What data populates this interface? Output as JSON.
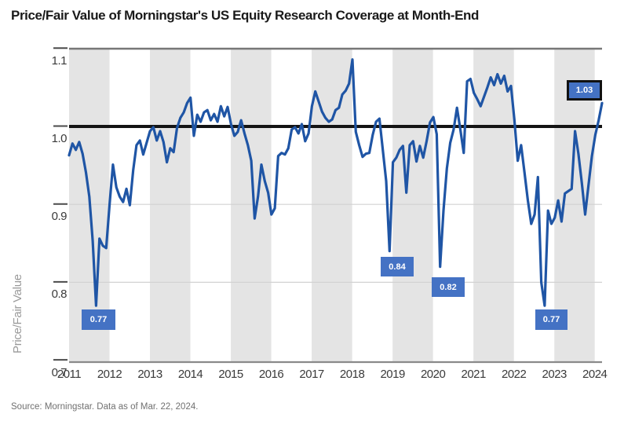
{
  "header": {
    "title": "Price/Fair Value of Morningstar's US Equity Research Coverage at Month-End"
  },
  "footer": {
    "source": "Source: Morningstar. Data as of Mar. 22, 2024."
  },
  "colors": {
    "line": "#1F55A5",
    "annotation_fill": "#4472C4",
    "annotation_border": "#111111",
    "band": "#e4e4e4",
    "grid": "#d2d2d2",
    "axis": "#8a8a8a",
    "tick": "#4a4a4a",
    "reference_line": "#141414",
    "title_text": "#1a1a1a",
    "axis_text": "#3a3a3a",
    "muted_text": "#9a9a9a",
    "source_text": "#707070"
  },
  "chart_data": {
    "type": "line",
    "title": "Price/Fair Value of Morningstar's US Equity Research Coverage at Month-End",
    "xlabel": "",
    "ylabel": "Price/Fair Value",
    "x_unit": "month",
    "start": "2011-01",
    "end": "2024-03",
    "x_tick_years": [
      2011,
      2012,
      2013,
      2014,
      2015,
      2016,
      2017,
      2018,
      2019,
      2020,
      2021,
      2022,
      2023,
      2024
    ],
    "y_ticks": [
      1.1,
      1.0,
      0.9,
      0.8,
      0.7
    ],
    "y_tick_labels": [
      "1.1",
      "1.0",
      "0.9",
      "0.8",
      "0.7"
    ],
    "ylim": [
      0.696,
      1.1
    ],
    "grid_values": [
      0.9,
      0.8
    ],
    "reference_line": 1.0,
    "shaded_years": [
      2011,
      2013,
      2015,
      2017,
      2019,
      2021,
      2023
    ],
    "legend": "none",
    "series": [
      {
        "name": "Price/Fair Value",
        "values": [
          0.963,
          0.978,
          0.97,
          0.98,
          0.965,
          0.941,
          0.91,
          0.853,
          0.77,
          0.856,
          0.847,
          0.844,
          0.9,
          0.951,
          0.922,
          0.91,
          0.903,
          0.92,
          0.899,
          0.944,
          0.976,
          0.982,
          0.964,
          0.979,
          0.994,
          0.999,
          0.982,
          0.994,
          0.98,
          0.954,
          0.972,
          0.967,
          0.998,
          1.011,
          1.018,
          1.03,
          1.037,
          0.988,
          1.015,
          1.006,
          1.018,
          1.021,
          1.008,
          1.016,
          1.006,
          1.026,
          1.013,
          1.025,
          1.003,
          0.988,
          0.993,
          1.008,
          0.991,
          0.976,
          0.956,
          0.882,
          0.91,
          0.951,
          0.93,
          0.915,
          0.887,
          0.895,
          0.962,
          0.966,
          0.964,
          0.972,
          0.996,
          0.999,
          0.991,
          1.003,
          0.981,
          0.991,
          1.026,
          1.045,
          1.032,
          1.019,
          1.011,
          1.006,
          1.009,
          1.021,
          1.024,
          1.041,
          1.046,
          1.055,
          1.086,
          0.993,
          0.976,
          0.961,
          0.965,
          0.966,
          0.989,
          1.006,
          1.01,
          0.97,
          0.93,
          0.84,
          0.954,
          0.96,
          0.97,
          0.975,
          0.915,
          0.976,
          0.981,
          0.955,
          0.975,
          0.96,
          0.981,
          1.005,
          1.012,
          0.99,
          0.82,
          0.892,
          0.946,
          0.979,
          0.996,
          1.024,
          0.996,
          0.966,
          1.058,
          1.061,
          1.043,
          1.035,
          1.026,
          1.038,
          1.05,
          1.063,
          1.053,
          1.067,
          1.055,
          1.065,
          1.045,
          1.052,
          1.009,
          0.956,
          0.976,
          0.941,
          0.905,
          0.875,
          0.887,
          0.935,
          0.8,
          0.77,
          0.892,
          0.875,
          0.883,
          0.905,
          0.878,
          0.914,
          0.917,
          0.92,
          0.994,
          0.965,
          0.928,
          0.887,
          0.925,
          0.962,
          0.989,
          1.008,
          1.03
        ]
      }
    ],
    "annotations": [
      {
        "text": "0.77",
        "month": "2011-09",
        "boxed": false,
        "px": {
          "x": 104,
          "y": 394,
          "w": 43,
          "h": 26
        }
      },
      {
        "text": "0.84",
        "month": "2018-12",
        "boxed": false,
        "px": {
          "x": 485,
          "y": 327,
          "w": 42,
          "h": 25
        }
      },
      {
        "text": "0.82",
        "month": "2020-03",
        "boxed": false,
        "px": {
          "x": 550,
          "y": 353,
          "w": 42,
          "h": 25
        }
      },
      {
        "text": "0.77",
        "month": "2022-10",
        "boxed": false,
        "px": {
          "x": 682,
          "y": 394,
          "w": 41,
          "h": 26
        }
      },
      {
        "text": "1.03",
        "month": "2024-03",
        "boxed": true,
        "px": {
          "x": 722,
          "y": 102,
          "w": 45,
          "h": 26
        }
      }
    ]
  }
}
